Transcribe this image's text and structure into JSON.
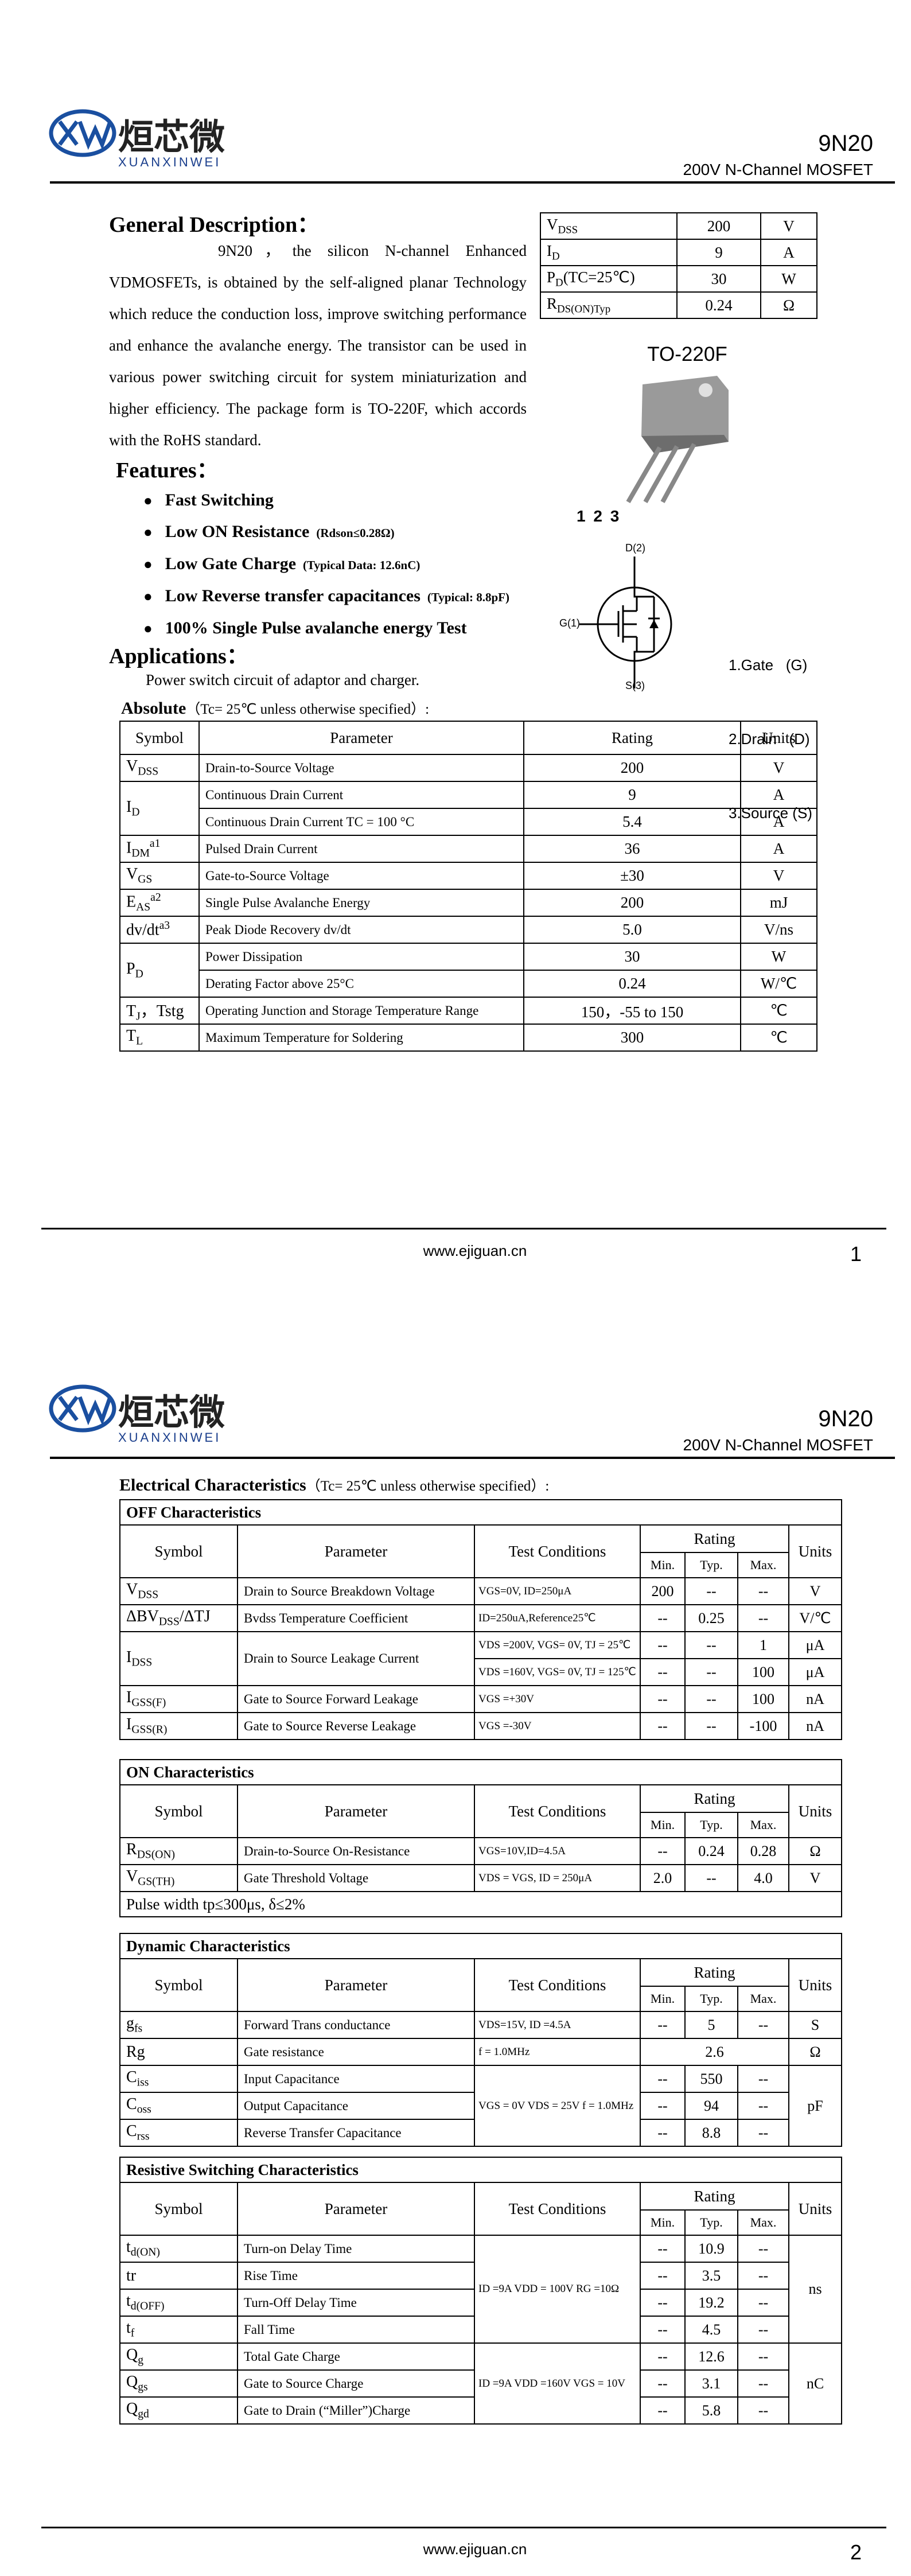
{
  "pages": [
    {
      "header": {
        "logo_cn": "烜芯微",
        "logo_en": "XUANXINWEI",
        "part": "9N20",
        "subtitle": "200V N-Channel MOSFET"
      },
      "general_description": {
        "title": "General Description：",
        "text": "9N20，the silicon N-channel Enhanced VDMOSFETs, is obtained by the self-aligned planar Technology which reduce the conduction loss, improve switching performance and enhance the avalanche energy. The transistor can be used in various power switching circuit for system miniaturization and higher efficiency. The package form is TO-220F, which accords with the RoHS standard."
      },
      "summary_table": {
        "rows": [
          [
            {
              "text": "V",
              "sub": "DSS"
            },
            "200",
            "V"
          ],
          [
            {
              "text": "I",
              "sub": "D"
            },
            "9",
            "A"
          ],
          [
            {
              "text": "P",
              "sub": "D",
              "after": "(TC=25℃)"
            },
            "30",
            "W"
          ],
          [
            {
              "text": "R",
              "sub": "DS(ON)Typ"
            },
            "0.24",
            "Ω"
          ]
        ]
      },
      "package": {
        "name": "TO-220F",
        "pin_numbers": "1 2 3",
        "drain": "D(2)",
        "gate": "G(1)",
        "source": "S(3)",
        "legend": [
          "1.Gate   (G)",
          "2.Drain   (D)",
          "3.Source (S)"
        ]
      },
      "features": {
        "title": "Features：",
        "items": [
          {
            "text": "Fast Switching"
          },
          {
            "text": "Low ON Resistance",
            "note": "(Rdson≤0.28Ω)"
          },
          {
            "text": "Low Gate Charge",
            "note": "(Typical Data: 12.6nC)"
          },
          {
            "text": "Low Reverse transfer capacitances",
            "note": "(Typical: 8.8pF)"
          },
          {
            "text": "100% Single Pulse avalanche energy Test"
          }
        ]
      },
      "applications": {
        "title": "Applications：",
        "text": "Power switch circuit of adaptor and charger."
      },
      "absolute": {
        "title": "Absolute",
        "condition": "（Tc= 25℃  unless otherwise specified）:",
        "header": [
          "Symbol",
          "Parameter",
          "Rating",
          "Units"
        ],
        "rows": [
          [
            {
              "text": "V",
              "sub": "DSS"
            },
            "Drain-to-Source Voltage",
            "200",
            "V"
          ],
          [
            {
              "text": "I",
              "sub": "D"
            },
            "Continuous Drain Current",
            "9",
            "A"
          ],
          [
            "Continuous Drain Current TC = 100 °C",
            "5.4",
            "A"
          ],
          [
            {
              "text": "I",
              "sub": "DM",
              "sup": "a1"
            },
            "Pulsed Drain Current",
            "36",
            "A"
          ],
          [
            {
              "text": "V",
              "sub": "GS"
            },
            "Gate-to-Source Voltage",
            "±30",
            "V"
          ],
          [
            {
              "text": "E",
              "sub": "AS",
              "sup": "a2"
            },
            "Single Pulse Avalanche Energy",
            "200",
            "mJ"
          ],
          [
            {
              "text": "dv/dt",
              "sup": "a3"
            },
            "Peak Diode Recovery dv/dt",
            "5.0",
            "V/ns"
          ],
          [
            {
              "text": "P",
              "sub": "D"
            },
            "Power Dissipation",
            "30",
            "W"
          ],
          [
            "Derating Factor above 25°C",
            "0.24",
            "W/℃"
          ],
          [
            {
              "text": "T",
              "sub": "J",
              "after": "，Tstg"
            },
            "Operating Junction and Storage Temperature Range",
            "150，-55 to 150",
            "℃"
          ],
          [
            {
              "text": "T",
              "sub": "L"
            },
            "Maximum Temperature for Soldering",
            "300",
            "℃"
          ]
        ]
      },
      "footer": {
        "url": "www.ejiguan.cn",
        "page": "1"
      }
    },
    {
      "header": {
        "logo_cn": "烜芯微",
        "logo_en": "XUANXINWEI",
        "part": "9N20",
        "subtitle": "200V N-Channel MOSFET"
      },
      "electrical": {
        "title": "Electrical Characteristics",
        "condition": "（Tc= 25℃  unless otherwise specified）:",
        "tables": [
          {
            "title": "OFF Characteristics",
            "header": [
              [
                "Symbol",
                "Parameter",
                "Test Conditions",
                "Rating",
                "Units"
              ],
              [
                "Min.",
                "Typ.",
                "Max."
              ]
            ],
            "rows": [
              [
                {
                  "text": "V",
                  "sub": "DSS"
                },
                "Drain to Source Breakdown Voltage",
                "VGS=0V, ID=250μA",
                "200",
                "--",
                "--",
                "V"
              ],
              [
                {
                  "text": "ΔBV",
                  "sub": "DSS",
                  "after": "/ΔTJ"
                },
                "Bvdss Temperature Coefficient",
                "ID=250uA,Reference25℃",
                "--",
                "0.25",
                "--",
                "V/℃"
              ],
              [
                {
                  "text": "I",
                  "sub": "DSS"
                },
                "Drain to Source Leakage Current",
                "VDS =200V, VGS= 0V, TJ = 25℃",
                "--",
                "--",
                "1",
                "μA"
              ],
              [
                "VDS =160V, VGS= 0V, TJ = 125℃",
                "--",
                "--",
                "100",
                "μA"
              ],
              [
                {
                  "text": "I",
                  "sub": "GSS(F)"
                },
                "Gate to Source Forward Leakage",
                "VGS =+30V",
                "--",
                "--",
                "100",
                "nA"
              ],
              [
                {
                  "text": "I",
                  "sub": "GSS(R)"
                },
                "Gate to Source Reverse Leakage",
                "VGS =-30V",
                "--",
                "--",
                "-100",
                "nA"
              ]
            ]
          },
          {
            "title": "ON Characteristics",
            "header": [
              [
                "Symbol",
                "Parameter",
                "Test Conditions",
                "Rating",
                "Units"
              ],
              [
                "Min.",
                "Typ.",
                "Max."
              ]
            ],
            "rows": [
              [
                {
                  "text": "R",
                  "sub": "DS(ON)"
                },
                "Drain-to-Source On-Resistance",
                "VGS=10V,ID=4.5A",
                "--",
                "0.24",
                "0.28",
                "Ω"
              ],
              [
                {
                  "text": "V",
                  "sub": "GS(TH)"
                },
                "Gate Threshold Voltage",
                "VDS = VGS, ID = 250μA",
                "2.0",
                "--",
                "4.0",
                "V"
              ]
            ],
            "note": "Pulse width tp≤300μs, δ≤2%"
          },
          {
            "title": "Dynamic Characteristics",
            "header": [
              [
                "Symbol",
                "Parameter",
                "Test Conditions",
                "Rating",
                "Units"
              ],
              [
                "Min.",
                "Typ.",
                "Max."
              ]
            ],
            "rows": [
              [
                {
                  "text": "g",
                  "sub": "fs"
                },
                "Forward Trans conductance",
                "VDS=15V, ID =4.5A",
                "--",
                "5",
                "--",
                "S"
              ],
              [
                "Rg",
                "Gate resistance",
                "f = 1.0MHz",
                "2.6",
                "Ω"
              ],
              [
                {
                  "text": "C",
                  "sub": "iss"
                },
                "Input Capacitance",
                "VGS = 0V VDS = 25V f = 1.0MHz",
                "--",
                "550",
                "--",
                "pF"
              ],
              [
                {
                  "text": "C",
                  "sub": "oss"
                },
                "Output Capacitance",
                "--",
                "94",
                "--"
              ],
              [
                {
                  "text": "C",
                  "sub": "rss"
                },
                "Reverse Transfer Capacitance",
                "--",
                "8.8",
                "--"
              ]
            ]
          },
          {
            "title": "Resistive Switching Characteristics",
            "header": [
              [
                "Symbol",
                "Parameter",
                "Test Conditions",
                "Rating",
                "Units"
              ],
              [
                "Min.",
                "Typ.",
                "Max."
              ]
            ],
            "rows": [
              [
                {
                  "text": "t",
                  "sub": "d(ON)"
                },
                "Turn-on Delay Time",
                "ID =9A   VDD = 100V RG =10Ω",
                "--",
                "10.9",
                "--",
                "ns"
              ],
              [
                "tr",
                "Rise Time",
                "--",
                "3.5",
                "--"
              ],
              [
                {
                  "text": "t",
                  "sub": "d(OFF)"
                },
                "Turn-Off Delay Time",
                "--",
                "19.2",
                "--"
              ],
              [
                {
                  "text": "t",
                  "sub": "f"
                },
                "Fall Time",
                "--",
                "4.5",
                "--"
              ],
              [
                {
                  "text": "Q",
                  "sub": "g"
                },
                "Total Gate Charge",
                "ID =9A   VDD =160V VGS = 10V",
                "--",
                "12.6",
                "--",
                "nC"
              ],
              [
                {
                  "text": "Q",
                  "sub": "gs"
                },
                "Gate to Source Charge",
                "--",
                "3.1",
                "--"
              ],
              [
                {
                  "text": "Q",
                  "sub": "gd"
                },
                "Gate to Drain (“Miller”)Charge",
                "--",
                "5.8",
                "--"
              ]
            ]
          }
        ]
      },
      "footer": {
        "url": "www.ejiguan.cn",
        "page": "2"
      }
    }
  ]
}
